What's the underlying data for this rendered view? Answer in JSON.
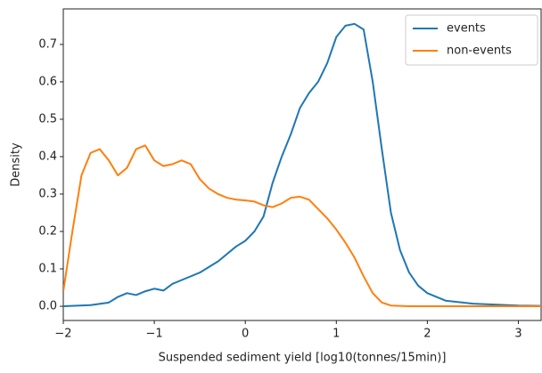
{
  "chart_data": {
    "type": "line",
    "xlabel": "Suspended sediment yield [log10(tonnes/15min)]",
    "ylabel": "Density",
    "xlim": [
      -2,
      3.25
    ],
    "ylim": [
      -0.038,
      0.795
    ],
    "xticks": [
      {
        "value": -2,
        "label": "−2"
      },
      {
        "value": -1,
        "label": "−1"
      },
      0,
      1,
      2,
      3
    ],
    "yticks": [
      {
        "value": 0,
        "label": "0.0"
      },
      0.1,
      0.2,
      0.3,
      0.4,
      0.5,
      0.6,
      0.7
    ],
    "legend": "upper right",
    "series": [
      {
        "name": "events",
        "color": "#1f77b4",
        "x": [
          -2,
          -1.7,
          -1.5,
          -1.4,
          -1.3,
          -1.2,
          -1.1,
          -1.0,
          -0.9,
          -0.8,
          -0.7,
          -0.5,
          -0.3,
          -0.1,
          0.0,
          0.1,
          0.2,
          0.3,
          0.4,
          0.5,
          0.6,
          0.7,
          0.8,
          0.9,
          1.0,
          1.1,
          1.2,
          1.3,
          1.4,
          1.5,
          1.6,
          1.7,
          1.8,
          1.9,
          2.0,
          2.2,
          2.5,
          3.0,
          3.25
        ],
        "values": [
          0.0,
          0.003,
          0.01,
          0.025,
          0.035,
          0.03,
          0.04,
          0.047,
          0.042,
          0.06,
          0.07,
          0.09,
          0.12,
          0.16,
          0.175,
          0.2,
          0.24,
          0.33,
          0.4,
          0.46,
          0.53,
          0.57,
          0.6,
          0.65,
          0.72,
          0.75,
          0.755,
          0.74,
          0.6,
          0.42,
          0.25,
          0.15,
          0.09,
          0.055,
          0.035,
          0.015,
          0.007,
          0.002,
          0.001
        ]
      },
      {
        "name": "non-events",
        "color": "#ff7f0e",
        "x": [
          -2,
          -1.9,
          -1.8,
          -1.7,
          -1.6,
          -1.5,
          -1.4,
          -1.3,
          -1.2,
          -1.1,
          -1.0,
          -0.9,
          -0.8,
          -0.7,
          -0.6,
          -0.5,
          -0.4,
          -0.3,
          -0.2,
          -0.1,
          0.0,
          0.1,
          0.2,
          0.3,
          0.4,
          0.5,
          0.6,
          0.7,
          0.8,
          0.9,
          1.0,
          1.1,
          1.2,
          1.3,
          1.4,
          1.5,
          1.6,
          1.8,
          3.25
        ],
        "values": [
          0.04,
          0.2,
          0.35,
          0.41,
          0.42,
          0.39,
          0.35,
          0.37,
          0.42,
          0.43,
          0.39,
          0.375,
          0.38,
          0.39,
          0.38,
          0.34,
          0.315,
          0.3,
          0.29,
          0.285,
          0.283,
          0.28,
          0.27,
          0.265,
          0.275,
          0.29,
          0.293,
          0.285,
          0.26,
          0.235,
          0.205,
          0.17,
          0.13,
          0.08,
          0.035,
          0.01,
          0.002,
          0,
          0
        ]
      }
    ]
  }
}
